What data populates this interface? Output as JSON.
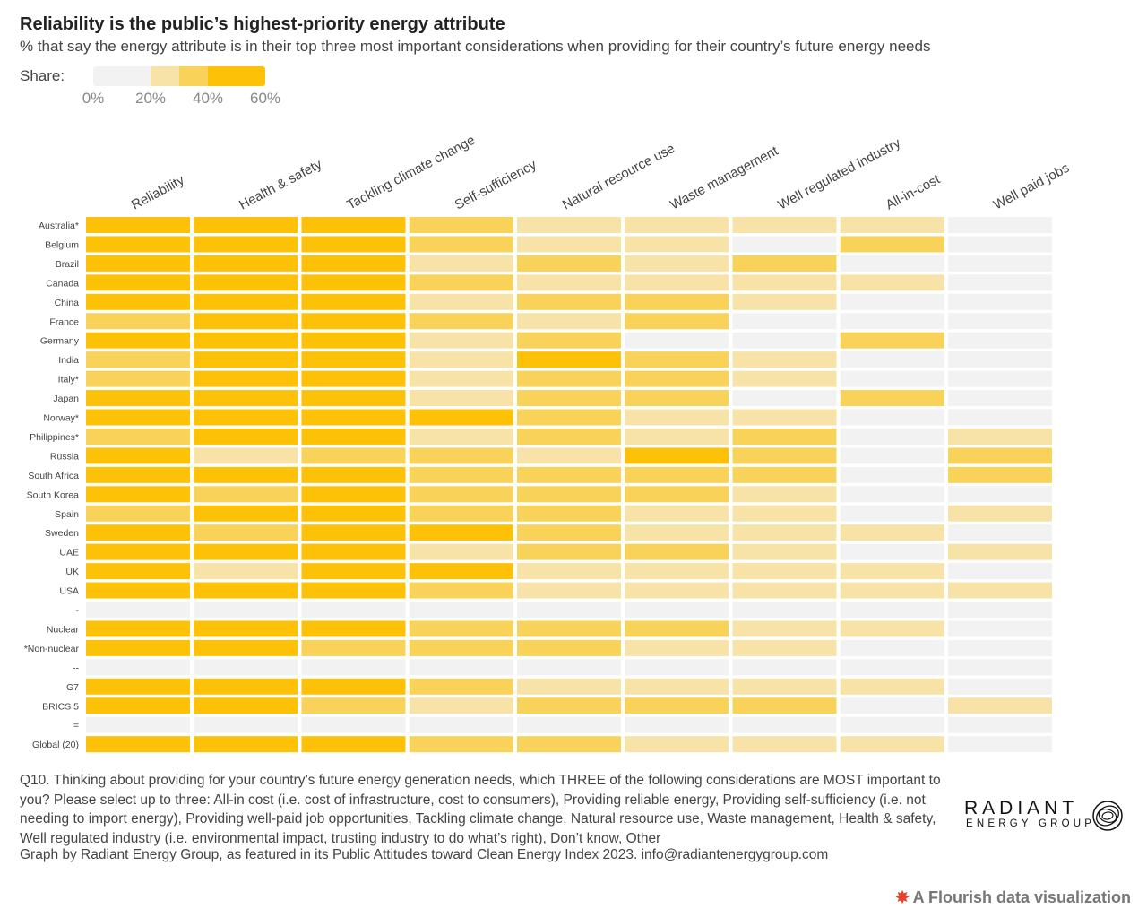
{
  "header": {
    "title": "Reliability is the public’s highest-priority energy attribute",
    "subtitle": "% that say the energy attribute is in their top three most important considerations when providing for their country’s future energy needs"
  },
  "legend": {
    "label": "Share:",
    "ticks": [
      "0%",
      "20%",
      "40%",
      "60%"
    ],
    "colors": [
      "#f2f2f2",
      "#f7e3a7",
      "#f9d25a",
      "#fdc207"
    ]
  },
  "chart_data": {
    "type": "heatmap",
    "title": "Reliability is the public’s highest-priority energy attribute",
    "subtitle": "% that say the energy attribute is in their top three most important considerations when providing for their country’s future energy needs",
    "scale": {
      "min": 0,
      "max": 60,
      "unit": "%"
    },
    "columns": [
      "Reliability",
      "Health & safety",
      "Tackling climate change",
      "Self-sufficiency",
      "Natural resource use",
      "Waste management",
      "Well regulated industry",
      "All-in-cost",
      "Well paid jobs"
    ],
    "rows": [
      {
        "label": "Australia*",
        "values": [
          56,
          52,
          48,
          30,
          25,
          22,
          20,
          20,
          5
        ]
      },
      {
        "label": "Belgium",
        "values": [
          55,
          50,
          50,
          35,
          22,
          20,
          8,
          40,
          5
        ]
      },
      {
        "label": "Brazil",
        "values": [
          55,
          52,
          52,
          22,
          35,
          22,
          40,
          8,
          5
        ]
      },
      {
        "label": "Canada",
        "values": [
          55,
          50,
          48,
          35,
          28,
          25,
          22,
          22,
          5
        ]
      },
      {
        "label": "China",
        "values": [
          55,
          52,
          50,
          26,
          35,
          32,
          24,
          8,
          5
        ]
      },
      {
        "label": "France",
        "values": [
          40,
          52,
          50,
          35,
          24,
          38,
          8,
          5,
          5
        ]
      },
      {
        "label": "Germany",
        "values": [
          55,
          50,
          48,
          26,
          38,
          8,
          12,
          40,
          5
        ]
      },
      {
        "label": "India",
        "values": [
          42,
          52,
          50,
          22,
          55,
          35,
          24,
          10,
          5
        ]
      },
      {
        "label": "Italy*",
        "values": [
          44,
          52,
          50,
          26,
          36,
          33,
          24,
          10,
          5
        ]
      },
      {
        "label": "Japan",
        "values": [
          55,
          52,
          50,
          22,
          36,
          30,
          12,
          40,
          5
        ]
      },
      {
        "label": "Norway*",
        "values": [
          55,
          52,
          48,
          55,
          32,
          24,
          22,
          10,
          5
        ]
      },
      {
        "label": "Philippines*",
        "values": [
          44,
          55,
          50,
          22,
          33,
          24,
          36,
          8,
          20
        ]
      },
      {
        "label": "Russia",
        "values": [
          55,
          22,
          36,
          33,
          22,
          55,
          35,
          10,
          38
        ]
      },
      {
        "label": "South Africa",
        "values": [
          55,
          50,
          48,
          33,
          30,
          30,
          35,
          8,
          42
        ]
      },
      {
        "label": "South Korea",
        "values": [
          55,
          40,
          50,
          32,
          36,
          36,
          24,
          10,
          8
        ]
      },
      {
        "label": "Spain",
        "values": [
          42,
          52,
          50,
          35,
          30,
          28,
          22,
          12,
          20
        ]
      },
      {
        "label": "Sweden",
        "values": [
          55,
          40,
          50,
          50,
          30,
          26,
          22,
          20,
          8
        ]
      },
      {
        "label": "UAE",
        "values": [
          55,
          52,
          50,
          22,
          36,
          30,
          24,
          12,
          20
        ]
      },
      {
        "label": "UK",
        "values": [
          55,
          22,
          50,
          55,
          26,
          24,
          22,
          22,
          5
        ]
      },
      {
        "label": "USA",
        "values": [
          55,
          52,
          48,
          32,
          24,
          26,
          22,
          20,
          20
        ]
      },
      {
        "label": "-",
        "values": [
          5,
          5,
          5,
          5,
          5,
          5,
          5,
          5,
          5
        ]
      },
      {
        "label": "Nuclear",
        "values": [
          55,
          52,
          50,
          32,
          36,
          30,
          22,
          20,
          5
        ]
      },
      {
        "label": "*Non-nuclear",
        "values": [
          55,
          52,
          40,
          33,
          36,
          26,
          22,
          12,
          5
        ]
      },
      {
        "label": "--",
        "values": [
          5,
          5,
          5,
          5,
          5,
          5,
          5,
          5,
          5
        ]
      },
      {
        "label": "G7",
        "values": [
          55,
          52,
          50,
          36,
          28,
          26,
          24,
          22,
          5
        ]
      },
      {
        "label": "BRICS 5",
        "values": [
          55,
          52,
          40,
          22,
          36,
          36,
          30,
          10,
          20
        ]
      },
      {
        "label": "=",
        "values": [
          5,
          5,
          5,
          5,
          5,
          5,
          5,
          5,
          5
        ]
      },
      {
        "label": "Global (20)",
        "values": [
          55,
          52,
          50,
          32,
          30,
          24,
          24,
          22,
          8
        ]
      }
    ]
  },
  "footer": {
    "note": "Q10. Thinking about providing for your country’s future energy generation needs, which THREE of the following considerations are MOST important to you? Please select up to three: All-in cost (i.e. cost of infrastructure, cost to consumers), Providing reliable energy, Providing self-sufficiency (i.e. not needing to import energy), Providing well-paid job opportunities, Tackling climate change, Natural resource use, Waste management, Health & safety, Well regulated industry (i.e. environmental impact, trusting industry to do what’s right), Don’t know, Other",
    "credit": "Graph by Radiant Energy Group, as featured in its Public Attitudes toward Clean Energy Index 2023. info@radiantenergygroup.com",
    "logo_main": "RADIANT",
    "logo_sub": "ENERGY GROUP",
    "flourish": "A Flourish data visualization"
  }
}
